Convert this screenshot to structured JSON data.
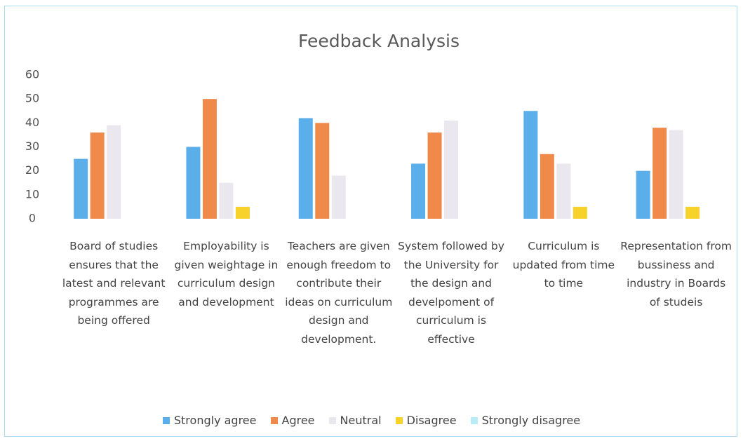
{
  "chart_data": {
    "type": "bar",
    "title": "Feedback Analysis",
    "categories": [
      "Board of studies ensures that the latest and relevant programmes are being offered",
      "Employability is given weightage in curriculum design and development",
      "Teachers are given enough freedom to contribute their ideas on curriculum design and development.",
      "System followed by the University for the design and develpoment of curriculum is effective",
      "Curriculum is updated from time to time",
      "Representation from bussiness and industry in Boards of studeis"
    ],
    "series": [
      {
        "name": "Strongly agree",
        "color": "#5aaeea",
        "values": [
          25,
          30,
          42,
          23,
          45,
          20
        ]
      },
      {
        "name": "Agree",
        "color": "#f08a4b",
        "values": [
          36,
          50,
          40,
          36,
          27,
          38
        ]
      },
      {
        "name": "Neutral",
        "color": "#ebe7ee",
        "values": [
          39,
          15,
          18,
          41,
          23,
          37
        ]
      },
      {
        "name": "Disagree",
        "color": "#f6d22a",
        "values": [
          0,
          5,
          0,
          0,
          5,
          5
        ]
      },
      {
        "name": "Strongly disagree",
        "color": "#b8ecf6",
        "values": [
          0,
          0,
          0,
          0,
          0,
          0
        ]
      }
    ],
    "ylim": [
      0,
      60
    ],
    "yticks": [
      0,
      10,
      20,
      30,
      40,
      50,
      60
    ],
    "grid": false,
    "legend": "bottom"
  }
}
